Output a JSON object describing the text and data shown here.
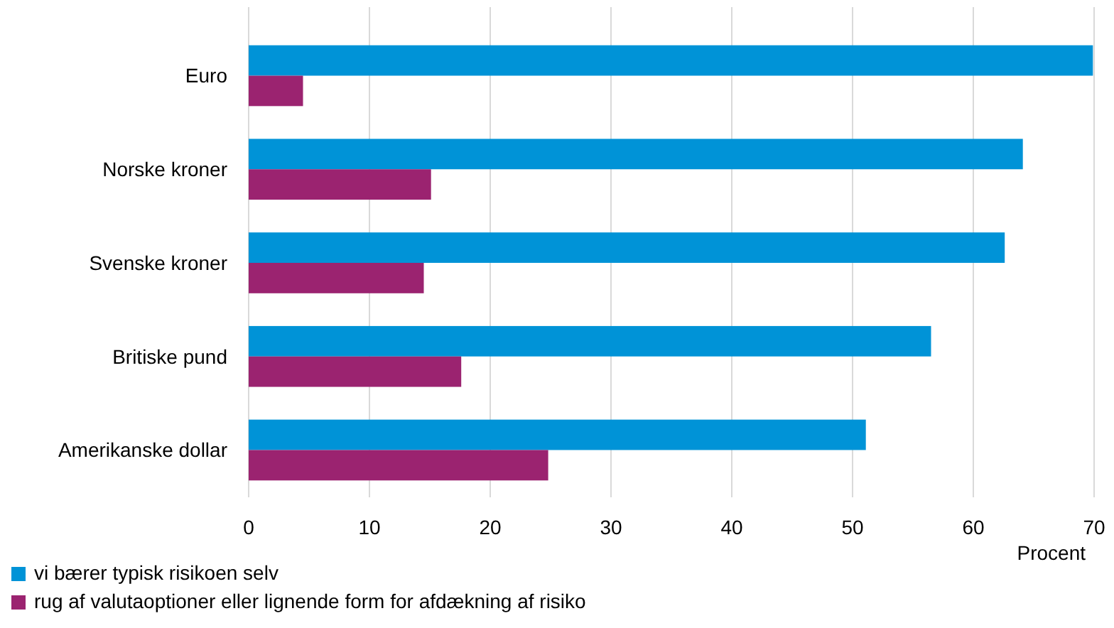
{
  "chart_data": {
    "type": "bar",
    "orientation": "horizontal",
    "categories": [
      "Euro",
      "Norske kroner",
      "Svenske kroner",
      "Britiske pund",
      "Amerikanske dollar"
    ],
    "series": [
      {
        "name": "vi bærer typisk risikoen selv",
        "color": "#0093d7",
        "values": [
          69.9,
          64.1,
          62.6,
          56.5,
          51.1
        ]
      },
      {
        "name": "rug af valutaoptioner eller lignende form for afdækning af risiko",
        "color": "#9b2370",
        "values": [
          4.5,
          15.1,
          14.5,
          17.6,
          24.8
        ]
      }
    ],
    "xlim": [
      0,
      70
    ],
    "xticks": [
      0,
      10,
      20,
      30,
      40,
      50,
      60,
      70
    ],
    "xlabel": "Procent",
    "grid": "x",
    "legend": "bottom left"
  }
}
